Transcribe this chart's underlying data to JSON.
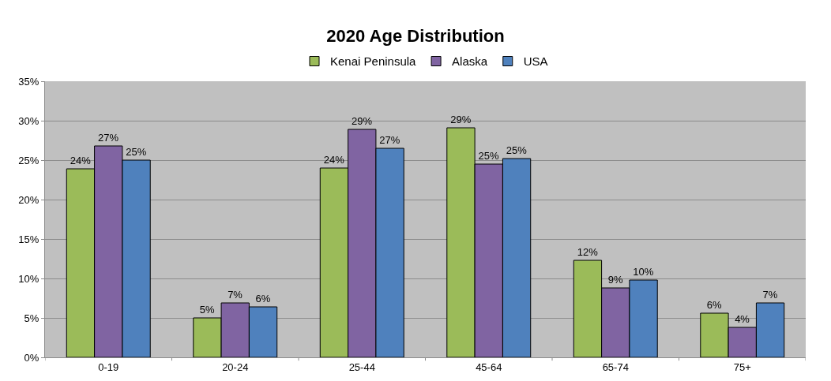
{
  "chart_data": {
    "type": "bar",
    "title": "2020 Age Distribution",
    "categories": [
      "0-19",
      "20-24",
      "25-44",
      "45-64",
      "65-74",
      "75+"
    ],
    "series": [
      {
        "name": "Kenai Peninsula",
        "color": "#9bbb59",
        "values": [
          23.9,
          5.0,
          24.0,
          29.1,
          12.3,
          5.6
        ],
        "value_labels": [
          "24%",
          "5%",
          "24%",
          "29%",
          "12%",
          "6%"
        ]
      },
      {
        "name": "Alaska",
        "color": "#8064a2",
        "values": [
          26.8,
          6.9,
          28.9,
          24.5,
          8.8,
          3.8
        ],
        "value_labels": [
          "27%",
          "7%",
          "29%",
          "25%",
          "9%",
          "4%"
        ]
      },
      {
        "name": "USA",
        "color": "#4f81bd",
        "values": [
          25.0,
          6.4,
          26.5,
          25.2,
          9.8,
          6.9
        ],
        "value_labels": [
          "25%",
          "6%",
          "27%",
          "25%",
          "10%",
          "7%"
        ]
      }
    ],
    "ylim": [
      0,
      35
    ],
    "yticks": [
      {
        "value": 0,
        "label": "0%"
      },
      {
        "value": 5,
        "label": "5%"
      },
      {
        "value": 10,
        "label": "10%"
      },
      {
        "value": 15,
        "label": "15%"
      },
      {
        "value": 20,
        "label": "20%"
      },
      {
        "value": 25,
        "label": "25%"
      },
      {
        "value": 30,
        "label": "30%"
      },
      {
        "value": 35,
        "label": "35%"
      }
    ],
    "grid": "y",
    "legend": "top"
  }
}
